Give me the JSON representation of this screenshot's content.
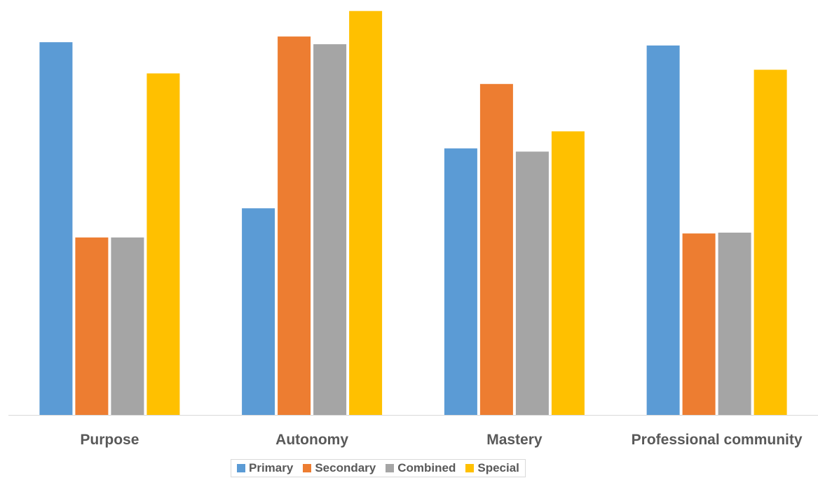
{
  "chart_data": {
    "type": "bar",
    "categories": [
      "Purpose",
      "Autonomy",
      "Mastery",
      "Professional community"
    ],
    "series": [
      {
        "name": "Primary",
        "color": "#5B9BD5",
        "values": [
          0.92,
          0.51,
          0.658,
          0.912
        ]
      },
      {
        "name": "Secondary",
        "color": "#ED7D31",
        "values": [
          0.438,
          0.934,
          0.817,
          0.448
        ]
      },
      {
        "name": "Combined",
        "color": "#A5A5A5",
        "values": [
          0.438,
          0.915,
          0.65,
          0.45
        ]
      },
      {
        "name": "Special",
        "color": "#FFC000",
        "values": [
          0.843,
          0.997,
          0.7,
          0.852
        ]
      }
    ],
    "ylim": [
      0,
      1
    ],
    "grid": false,
    "legend_position": "bottom",
    "axis_color": "#d9d9d9",
    "label_color": "#595959"
  }
}
